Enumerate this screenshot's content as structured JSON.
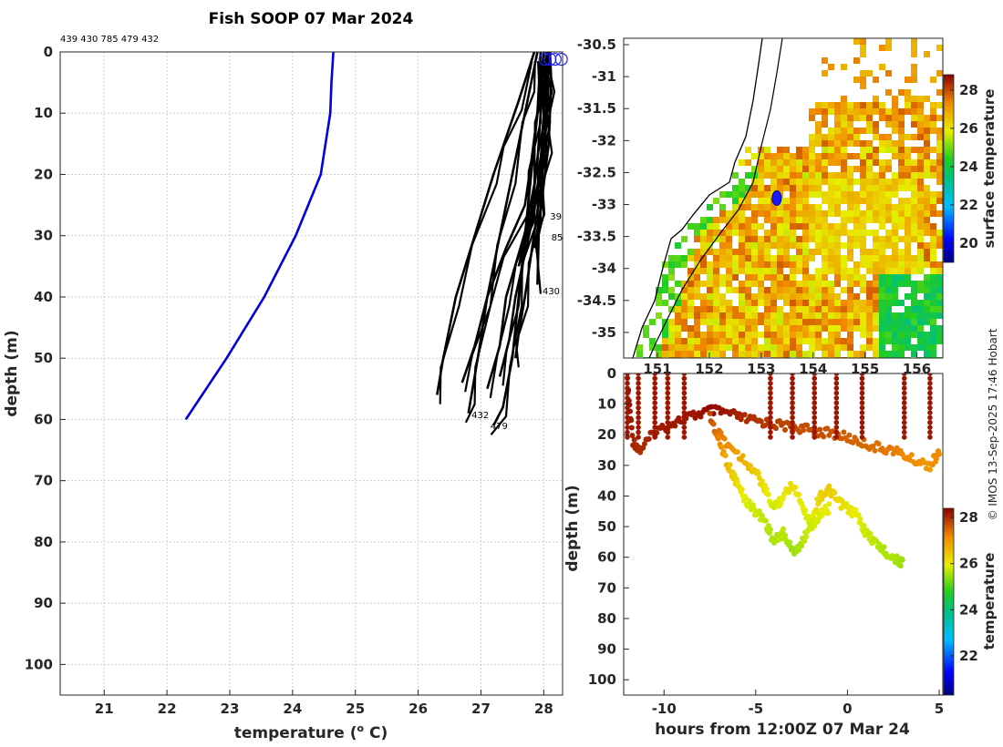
{
  "title": "Fish SOOP 07 Mar 2024",
  "top_ids_label": "439 430 785 479 432",
  "copyright": "© IMOS 13-Sep-2025 17:46 Hobart",
  "colors": {
    "reference_profile": "#0000dd",
    "casts": "#000000",
    "frame": "#262626"
  },
  "chart_data": [
    {
      "type": "line",
      "name": "temperature-profiles",
      "xlabel": "temperature (° C)",
      "xlabel_main": "temperature (",
      "xlabel_sup": "o",
      "xlabel_end": " C)",
      "ylabel": "depth (m)",
      "xlim": [
        20.3,
        28.3
      ],
      "ylim": [
        105,
        0
      ],
      "x_ticks": [
        21,
        22,
        23,
        24,
        25,
        26,
        27,
        28
      ],
      "y_ticks": [
        0,
        10,
        20,
        30,
        40,
        50,
        60,
        70,
        80,
        90,
        100
      ],
      "grid": true,
      "reference_profile": {
        "name": "climatology",
        "temperature": [
          24.65,
          24.62,
          24.6,
          24.45,
          24.05,
          23.55,
          22.95,
          22.3
        ],
        "depth": [
          0,
          5,
          10,
          20,
          30,
          40,
          50,
          60
        ]
      },
      "casts": [
        {
          "name": "439",
          "temperature": [
            28.0,
            28.02,
            28.05,
            28.0,
            27.95,
            27.85,
            27.75,
            27.6
          ],
          "depth": [
            0,
            5,
            10,
            15,
            20,
            25,
            29,
            35
          ]
        },
        {
          "name": "785",
          "temperature": [
            28.1,
            28.12,
            28.1,
            28.08,
            28.02,
            27.96,
            27.9,
            27.85
          ],
          "depth": [
            0,
            5,
            10,
            15,
            20,
            25,
            29,
            32
          ]
        },
        {
          "name": "430",
          "temperature": [
            28.05,
            28.08,
            28.05,
            28.0,
            27.98,
            27.95,
            27.92,
            27.9
          ],
          "depth": [
            0,
            5,
            10,
            15,
            20,
            25,
            30,
            38
          ]
        },
        {
          "name": "432",
          "temperature": [
            27.9,
            27.8,
            27.7,
            27.5,
            27.3,
            27.1,
            26.95,
            26.85,
            26.8
          ],
          "depth": [
            0,
            5,
            10,
            20,
            30,
            40,
            50,
            56,
            59
          ]
        },
        {
          "name": "479",
          "temperature": [
            28.0,
            27.95,
            27.9,
            27.8,
            27.7,
            27.6,
            27.5,
            27.35,
            27.2
          ],
          "depth": [
            0,
            5,
            10,
            20,
            30,
            40,
            50,
            58,
            61
          ]
        },
        {
          "name": "",
          "temperature": [
            27.85,
            27.6,
            27.4,
            27.2,
            26.9,
            26.6,
            26.4,
            26.3
          ],
          "depth": [
            0,
            8,
            14,
            20,
            30,
            40,
            50,
            56
          ]
        },
        {
          "name": "",
          "temperature": [
            27.95,
            27.9,
            27.8,
            27.7,
            27.4,
            27.1,
            26.9,
            26.7
          ],
          "depth": [
            0,
            10,
            18,
            25,
            32,
            40,
            48,
            54
          ]
        },
        {
          "name": "",
          "temperature": [
            28.0,
            27.95,
            27.9,
            27.8,
            27.6,
            27.4,
            27.3,
            27.1
          ],
          "depth": [
            0,
            10,
            18,
            26,
            33,
            40,
            48,
            55
          ]
        },
        {
          "name": "",
          "temperature": [
            28.05,
            28.0,
            27.95,
            27.85,
            27.7,
            27.55,
            27.45,
            27.3
          ],
          "depth": [
            0,
            10,
            18,
            26,
            33,
            40,
            47,
            53
          ]
        },
        {
          "name": "",
          "temperature": [
            28.08,
            28.05,
            28.0,
            27.9,
            27.8,
            27.7,
            27.6,
            27.55
          ],
          "depth": [
            0,
            10,
            18,
            26,
            33,
            40,
            46,
            50
          ]
        }
      ],
      "labels": [
        {
          "text": "39",
          "temperature": 28.1,
          "depth": 26.8
        },
        {
          "text": "85",
          "temperature": 28.12,
          "depth": 30.2
        },
        {
          "text": "430",
          "temperature": 27.98,
          "depth": 39.0
        },
        {
          "text": "432",
          "temperature": 26.85,
          "depth": 59.2
        },
        {
          "text": "479",
          "temperature": 27.15,
          "depth": 61.0
        }
      ]
    },
    {
      "type": "heatmap",
      "name": "surface-temperature-map",
      "colorbar_label": "surface temperature",
      "colorbar_ticks": [
        20,
        22,
        24,
        26,
        28
      ],
      "colorbar_range": [
        19.0,
        28.8
      ],
      "lat_ticks": [
        -30.5,
        -31,
        -31.5,
        -32,
        -32.5,
        -33,
        -33.5,
        -34,
        -34.5,
        -35
      ],
      "lat_range": [
        -35.4,
        -30.4
      ],
      "lon_ticks": [
        "151",
        "152",
        "153",
        "154",
        "155",
        "156"
      ],
      "lon_range": [
        150.35,
        156.5
      ],
      "track_position": {
        "lon": 153.3,
        "lat": -32.9
      }
    },
    {
      "type": "scatter",
      "name": "depth-time-section",
      "xlabel": "hours from 12:00Z 07 Mar 24",
      "ylabel": "depth (m)",
      "colorbar_label": "temperature",
      "colorbar_ticks": [
        22,
        24,
        26,
        28
      ],
      "colorbar_range": [
        20.3,
        28.4
      ],
      "xlim": [
        -12.2,
        5.2
      ],
      "ylim": [
        105,
        0
      ],
      "x_ticks": [
        -10,
        -5,
        0,
        5
      ],
      "y_ticks": [
        0,
        10,
        20,
        30,
        40,
        50,
        60,
        70,
        80,
        90,
        100
      ],
      "traces": [
        {
          "hours": [
            -12.0,
            -11.7,
            -11.3,
            -10.5,
            -9.5,
            -8.5,
            -7.5,
            -6.5,
            -5.5,
            -4.5,
            -3.5,
            -2.5,
            -1.5,
            -0.5,
            0.5,
            1.5,
            2.5,
            3.5,
            4.5,
            5.0
          ],
          "depth": [
            3,
            22,
            25,
            19,
            16,
            14,
            12,
            13,
            15,
            16,
            17,
            18,
            19,
            20,
            22,
            24,
            25,
            28,
            30,
            26
          ],
          "temperature": [
            28.3,
            28.1,
            28.0,
            28.1,
            28.2,
            28.2,
            28.3,
            28.2,
            28.0,
            27.9,
            27.8,
            27.7,
            27.7,
            27.6,
            27.5,
            27.4,
            27.3,
            27.1,
            27.0,
            27.2
          ]
        },
        {
          "hours": [
            -7.5,
            -7.0,
            -6.5,
            -6.0,
            -5.5,
            -5.0,
            -4.5,
            -4.0,
            -3.5,
            -3.0,
            -2.5,
            -2.0,
            -1.5,
            -1.0,
            -0.5,
            0.0,
            0.5,
            1.0,
            1.5,
            2.0,
            2.5,
            3.0
          ],
          "depth": [
            14,
            22,
            30,
            36,
            42,
            45,
            48,
            55,
            52,
            58,
            56,
            48,
            40,
            38,
            42,
            44,
            46,
            52,
            55,
            58,
            60,
            62
          ],
          "temperature": [
            27.8,
            27.2,
            26.6,
            26.2,
            25.9,
            25.8,
            25.7,
            25.6,
            25.7,
            25.5,
            25.6,
            25.9,
            26.3,
            26.4,
            26.2,
            26.1,
            26.0,
            25.8,
            25.7,
            25.6,
            25.6,
            25.5
          ]
        },
        {
          "hours": [
            -7.0,
            -6.0,
            -5.0,
            -4.5,
            -4.0,
            -3.5,
            -3.0,
            -2.5,
            -2.0,
            -1.5,
            -1.0
          ],
          "depth": [
            20,
            26,
            32,
            38,
            44,
            40,
            36,
            42,
            50,
            46,
            44
          ],
          "temperature": [
            27.4,
            26.9,
            26.4,
            26.1,
            25.8,
            26.0,
            26.2,
            26.0,
            25.8,
            25.9,
            26.0
          ]
        }
      ],
      "dive_hours": [
        -12.0,
        -11.4,
        -10.5,
        -9.8,
        -8.9,
        -4.2,
        -3.0,
        -1.8,
        -0.6,
        0.8,
        3.1,
        4.5
      ]
    }
  ]
}
